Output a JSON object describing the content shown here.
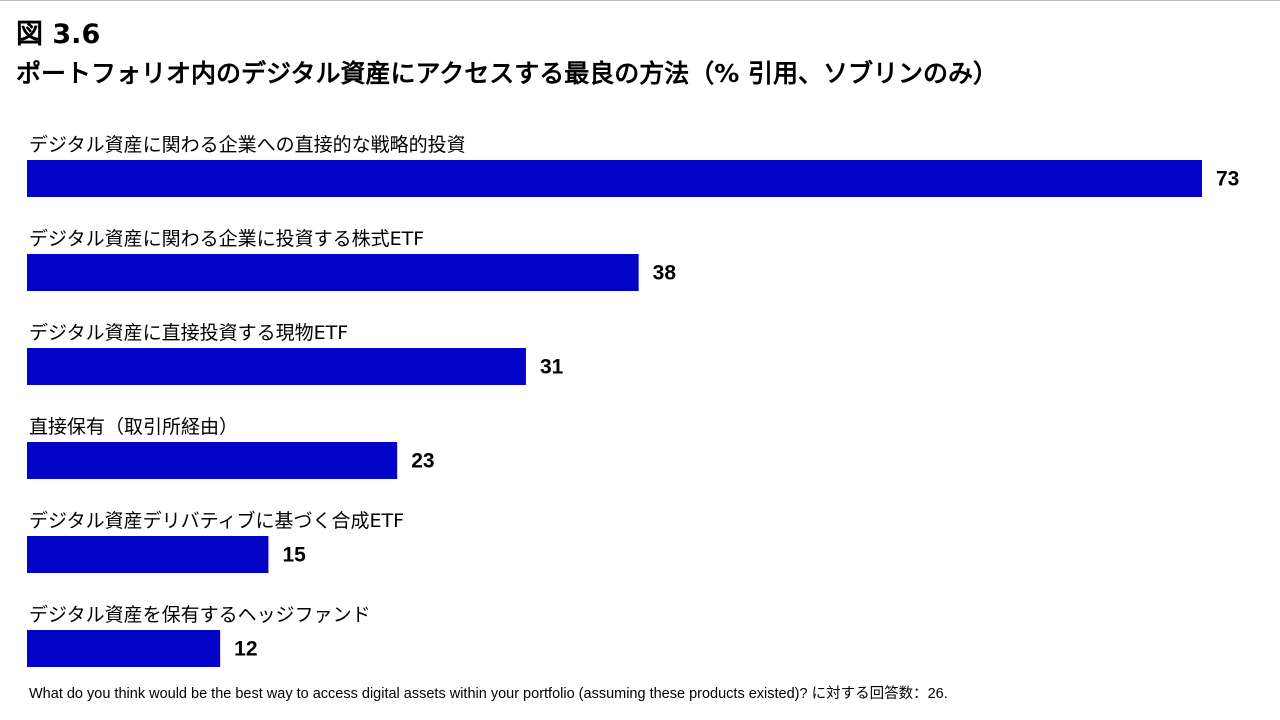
{
  "figure": {
    "number": "図 3.6",
    "title": "ポートフォリオ内のデジタル資産にアクセスする最良の方法（% 引用、ソブリンのみ）",
    "footnote": "What do you think would be the best way to access digital assets within your portfolio (assuming these products existed)? に対する回答数：26."
  },
  "chart_data": {
    "type": "bar",
    "orientation": "horizontal",
    "title": "ポートフォリオ内のデジタル資産にアクセスする最良の方法（% 引用、ソブリンのみ）",
    "xlabel": "",
    "ylabel": "",
    "xlim": [
      0,
      73
    ],
    "grid": false,
    "legend": "none",
    "bar_color": "#0404c8",
    "categories": [
      "デジタル資産に関わる企業への直接的な戦略的投資",
      "デジタル資産に関わる企業に投資する株式ETF",
      "デジタル資産に直接投資する現物ETF",
      "直接保有（取引所経由）",
      "デジタル資産デリバティブに基づく合成ETF",
      "デジタル資産を保有するヘッジファンド"
    ],
    "values": [
      73,
      38,
      31,
      23,
      15,
      12
    ]
  }
}
